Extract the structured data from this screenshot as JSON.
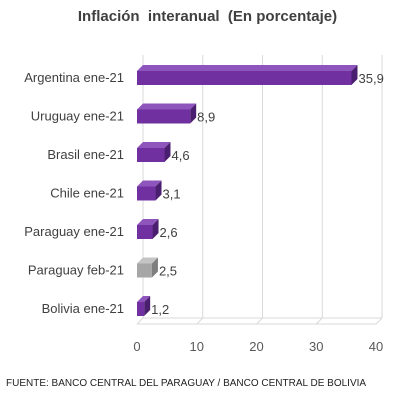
{
  "chart_data": {
    "type": "bar",
    "orientation": "horizontal",
    "title": "Inflación  interanual  (En porcentaje)",
    "categories": [
      "Argentina  ene-21",
      "Uruguay ene-21",
      "Brasil ene-21",
      "Chile ene-21",
      "Paraguay ene-21",
      "Paraguay feb-21",
      "Bolivia ene-21"
    ],
    "values": [
      35.9,
      8.9,
      4.6,
      3.1,
      2.6,
      2.5,
      1.2
    ],
    "value_labels": [
      "35,9",
      "8,9",
      "4,6",
      "3,1",
      "2,6",
      "2,5",
      "1,2"
    ],
    "bar_colors": [
      "#7030a0",
      "#7030a0",
      "#7030a0",
      "#7030a0",
      "#7030a0",
      "#a6a6a6",
      "#7030a0"
    ],
    "bar_side_colors": [
      "#4b1f6f",
      "#4b1f6f",
      "#4b1f6f",
      "#4b1f6f",
      "#4b1f6f",
      "#7f7f7f",
      "#4b1f6f"
    ],
    "bar_top_colors": [
      "#8e55bd",
      "#8e55bd",
      "#8e55bd",
      "#8e55bd",
      "#8e55bd",
      "#c4c4c4",
      "#8e55bd"
    ],
    "xlim": [
      0,
      40
    ],
    "xticks": [
      0,
      10,
      20,
      30,
      40
    ],
    "xtick_labels": [
      "0",
      "10",
      "20",
      "30",
      "40"
    ],
    "grid": true,
    "gridline_color": "#d9d9d9",
    "xlabel": "",
    "ylabel": ""
  },
  "source": "FUENTE: BANCO CENTRAL DEL PARAGUAY / BANCO CENTRAL DE BOLIVIA"
}
